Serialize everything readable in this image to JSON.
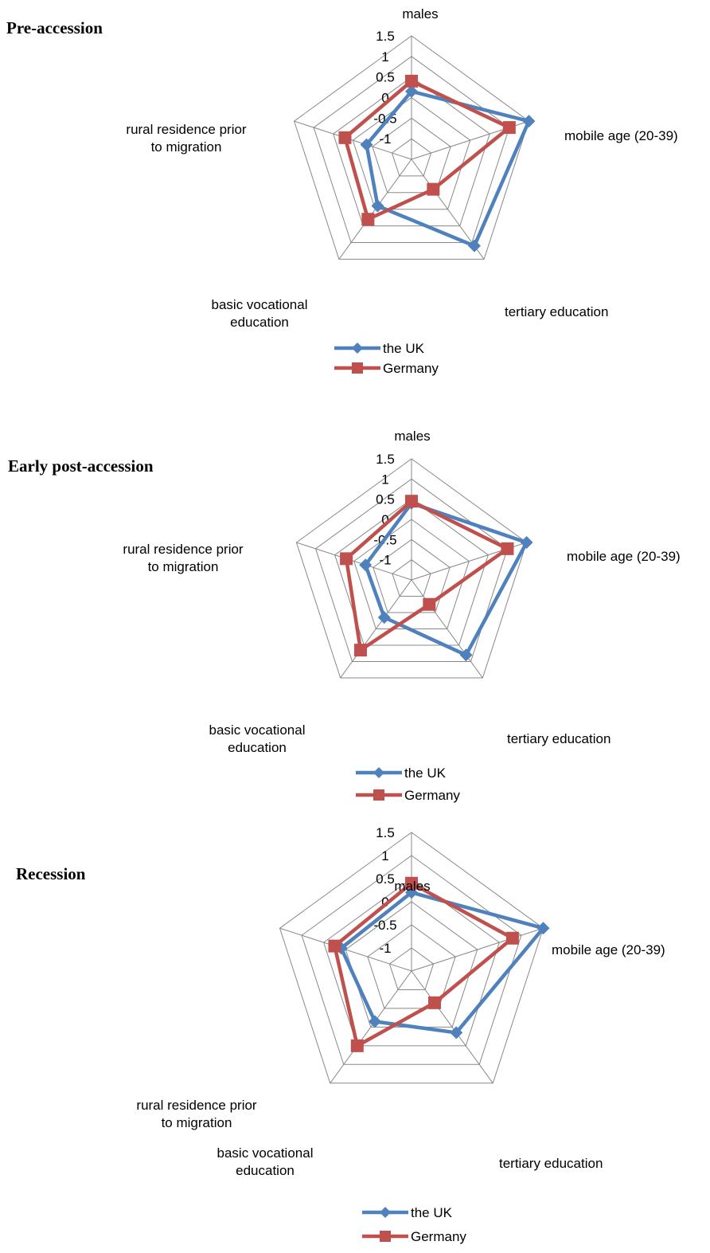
{
  "colors": {
    "uk": "#4F81BD",
    "germany": "#C0504D",
    "grid": "#888888"
  },
  "legend": {
    "uk_label": "the UK",
    "germany_label": "Germany"
  },
  "chart_data": [
    {
      "type": "radar",
      "title": "Pre-accession",
      "axes": [
        "males",
        "mobile age (20-39)",
        "tertiary education",
        "basic vocational education",
        "rural residence prior to migration"
      ],
      "ticks": [
        "1.5",
        "1",
        "0.5",
        "0",
        "-0.5",
        "-1"
      ],
      "rlim": [
        -1.5,
        1.5
      ],
      "series": [
        {
          "name": "the UK",
          "values": [
            0.15,
            1.5,
            1.1,
            -0.1,
            -0.35
          ],
          "marker": "diamond"
        },
        {
          "name": "Germany",
          "values": [
            0.4,
            1.0,
            -0.6,
            0.3,
            0.2
          ],
          "marker": "square"
        }
      ]
    },
    {
      "type": "radar",
      "title": "Early post-accession",
      "axes": [
        "males",
        "mobile age (20-39)",
        "tertiary education",
        "basic vocational education",
        "rural residence prior to migration"
      ],
      "ticks": [
        "1.5",
        "1",
        "0.5",
        "0",
        "-0.5",
        "-1"
      ],
      "rlim": [
        -1.5,
        1.5
      ],
      "series": [
        {
          "name": "the UK",
          "values": [
            0.4,
            1.5,
            0.8,
            -0.35,
            -0.3
          ],
          "marker": "diamond"
        },
        {
          "name": "Germany",
          "values": [
            0.45,
            1.0,
            -0.75,
            0.65,
            0.2
          ],
          "marker": "square"
        }
      ]
    },
    {
      "type": "radar",
      "title": "Recession",
      "axes": [
        "males",
        "mobile age (20-39)",
        "tertiary education",
        "basic vocational education",
        "rural residence prior to migration"
      ],
      "ticks": [
        "1.5",
        "1",
        "0.5",
        "0",
        "-0.5",
        "-1"
      ],
      "rlim": [
        -1.5,
        1.5
      ],
      "series": [
        {
          "name": "the UK",
          "values": [
            0.2,
            1.5,
            0.15,
            -0.15,
            0.1
          ],
          "marker": "diamond"
        },
        {
          "name": "Germany",
          "values": [
            0.4,
            0.8,
            -0.65,
            0.5,
            0.25
          ],
          "marker": "square"
        }
      ]
    }
  ]
}
